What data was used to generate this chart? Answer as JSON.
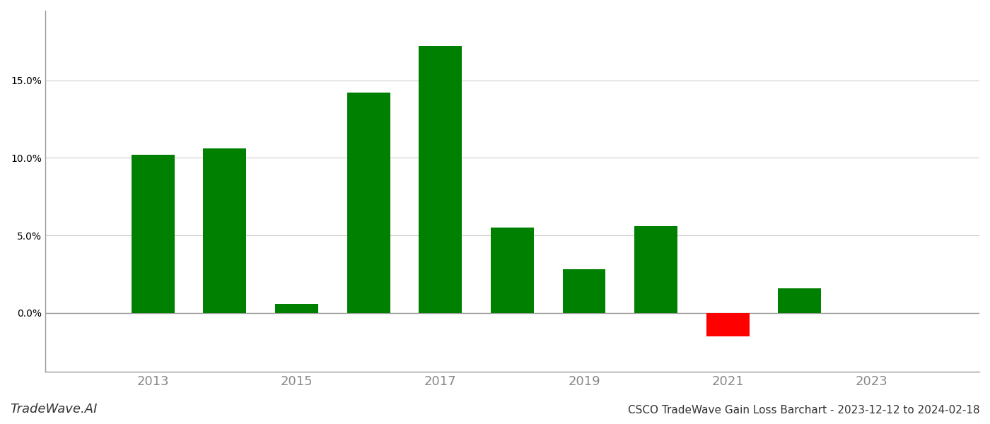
{
  "years": [
    2013,
    2014,
    2015,
    2016,
    2017,
    2018,
    2019,
    2020,
    2021,
    2022
  ],
  "values": [
    0.102,
    0.106,
    0.006,
    0.142,
    0.172,
    0.055,
    0.028,
    0.056,
    -0.015,
    0.016
  ],
  "colors": [
    "#008000",
    "#008000",
    "#008000",
    "#008000",
    "#008000",
    "#008000",
    "#008000",
    "#008000",
    "#ff0000",
    "#008000"
  ],
  "title": "CSCO TradeWave Gain Loss Barchart - 2023-12-12 to 2024-02-18",
  "watermark": "TradeWave.AI",
  "ylim_min": -0.038,
  "ylim_max": 0.195,
  "bar_width": 0.6,
  "ytick_values": [
    0.0,
    0.05,
    0.1,
    0.15
  ],
  "ytick_labels": [
    "0.0%",
    "5.0%",
    "10.0%",
    "15.0%"
  ],
  "xtick_labels": [
    "2013",
    "2015",
    "2017",
    "2019",
    "2021",
    "2023"
  ],
  "xtick_positions": [
    2013,
    2015,
    2017,
    2019,
    2021,
    2023
  ],
  "background_color": "#ffffff",
  "grid_color": "#cccccc",
  "title_fontsize": 11,
  "watermark_fontsize": 13,
  "axis_label_color": "#888888",
  "title_color": "#333333",
  "spine_color": "#999999"
}
